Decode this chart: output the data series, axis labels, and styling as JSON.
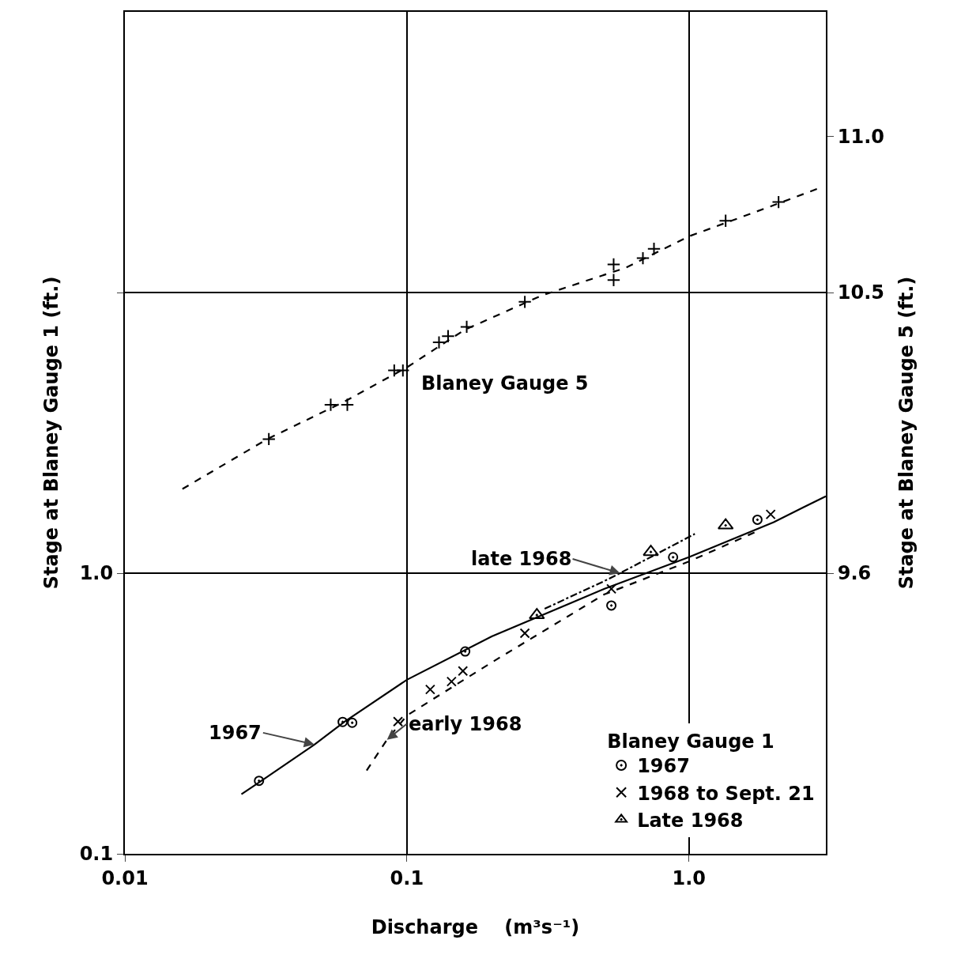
{
  "chart_data": {
    "type": "scatter",
    "xlabel": "Discharge    (m³s⁻¹)",
    "ylabel": "Stage at Blaney Gauge 1 (ft.)",
    "y2label": "Stage at Blaney Gauge 5 (ft.)",
    "legend_title": "Blaney Gauge 1",
    "log": "xy",
    "grid": true,
    "legend": "bottom right",
    "xlim": [
      0.01,
      3.06
    ],
    "xticks": [
      0.01,
      0.1,
      {
        "value": 1,
        "label": "1.0"
      }
    ],
    "ylim": [
      0.1,
      100
    ],
    "yticks": [
      0.1,
      {
        "value": 1,
        "label": "1.0"
      },
      {
        "value": 10,
        "label": null
      }
    ],
    "y2lim": [
      8.7,
      11.4
    ],
    "y2ticks": [
      9.6,
      10.5,
      {
        "value": 11,
        "label": "11.0"
      }
    ],
    "series": [
      {
        "type": "line",
        "axis": "y2",
        "line_style": "dashed",
        "color": "#000000",
        "x": [
          0.016,
          0.032,
          0.06,
          0.1,
          0.16,
          0.3,
          0.6,
          1.0,
          2.0,
          3.0
        ],
        "values": [
          9.87,
          10.03,
          10.15,
          10.26,
          10.38,
          10.49,
          10.58,
          10.68,
          10.78,
          10.84
        ]
      },
      {
        "axis": "y2",
        "marker": "cross",
        "color": "#000000",
        "x": [
          0.0324,
          0.0537,
          0.0615,
          0.0902,
          0.0968,
          0.13,
          0.14,
          0.163,
          0.262,
          0.541,
          0.541,
          0.687,
          0.752,
          1.35,
          2.08
        ],
        "values": [
          10.03,
          10.14,
          10.14,
          10.25,
          10.25,
          10.34,
          10.36,
          10.39,
          10.47,
          10.59,
          10.54,
          10.61,
          10.64,
          10.73,
          10.79
        ]
      },
      {
        "type": "line",
        "line_style": "solid",
        "color": "#000000",
        "x": [
          0.0259,
          0.03,
          0.047,
          0.06,
          0.1,
          0.2,
          0.5,
          1.0,
          2.0,
          3.06
        ],
        "values": [
          0.163,
          0.18,
          0.245,
          0.295,
          0.417,
          0.595,
          0.878,
          1.14,
          1.52,
          1.88
        ]
      },
      {
        "type": "line",
        "line_style": "dashed",
        "color": "#000000",
        "x": [
          0.072,
          0.085,
          0.1,
          0.2,
          0.5,
          1.0,
          1.8
        ],
        "values": [
          0.198,
          0.255,
          0.311,
          0.481,
          0.839,
          1.1,
          1.43
        ]
      },
      {
        "type": "line",
        "line_style": "dotted",
        "color": "#000000",
        "x": [
          0.308,
          0.5,
          0.57,
          1.05
        ],
        "values": [
          0.747,
          0.936,
          1.0,
          1.38
        ]
      },
      {
        "name": "1967",
        "marker": "circle",
        "color": "#000000",
        "x": [
          0.0299,
          0.0592,
          0.064,
          0.161,
          0.531,
          0.879,
          1.75
        ],
        "values": [
          0.182,
          0.295,
          0.293,
          0.526,
          0.767,
          1.14,
          1.55
        ]
      },
      {
        "name": "1968 to Sept. 21",
        "marker": "x",
        "color": "#000000",
        "x": [
          0.093,
          0.121,
          0.144,
          0.158,
          0.262,
          0.531,
          1.95
        ],
        "values": [
          0.296,
          0.385,
          0.411,
          0.448,
          0.611,
          0.879,
          1.62
        ]
      },
      {
        "name": "Late 1968",
        "marker": "triangle",
        "color": "#000000",
        "x": [
          0.289,
          0.733,
          1.35
        ],
        "values": [
          0.709,
          1.19,
          1.48
        ]
      }
    ],
    "annotations": [
      "Blaney Gauge 5",
      {
        "text": "late 1968",
        "x": 0.57,
        "y": 1.0
      },
      {
        "text": "1967",
        "x": 0.047,
        "y": 0.245
      },
      {
        "text": "early 1968",
        "x": 0.085,
        "y": 0.255
      }
    ]
  }
}
